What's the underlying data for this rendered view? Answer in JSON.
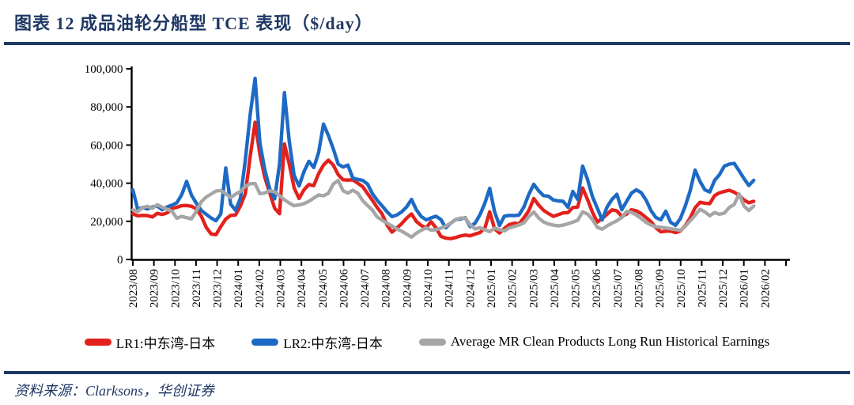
{
  "header": {
    "title": "图表 12  成品油轮分船型 TCE 表现（$/day）"
  },
  "source": {
    "text": "资料来源：Clarksons，华创证券"
  },
  "colors": {
    "navy": "#1F3864",
    "axis": "#000000",
    "lr1_red": "#E3211C",
    "lr2_blue": "#1D6AC5",
    "mr_gray": "#A6A6A6"
  },
  "chart_data": {
    "type": "line",
    "title": "成品油轮分船型 TCE 表现（$/day）",
    "ylabel": "",
    "xlabel": "",
    "ylim": [
      0,
      100000
    ],
    "grid": false,
    "legend_position": "bottom",
    "frequency": "weekly",
    "y_ticks": [
      0,
      20000,
      40000,
      60000,
      80000,
      100000
    ],
    "y_tick_labels": [
      "0",
      "20,000",
      "40,000",
      "60,000",
      "80,000",
      "100,000"
    ],
    "x_tick_labels": [
      "2023/08",
      "2023/09",
      "2023/10",
      "2023/11",
      "2023/12",
      "2024/01",
      "2024/02",
      "2024/03",
      "2024/04",
      "2024/05",
      "2024/06",
      "2024/07",
      "2024/08",
      "2024/09",
      "2024/10",
      "2024/11",
      "2024/12",
      "2025/01",
      "2025/02",
      "2025/03",
      "2025/04",
      "2025/05",
      "2025/06",
      "2025/07",
      "2025/08",
      "2025/09",
      "2025/10",
      "2025/11",
      "2025/12",
      "2026/01",
      "2026/02"
    ],
    "series": [
      {
        "name": "LR1:中东湾-日本",
        "color": "#E3211C",
        "values": [
          24000,
          22900,
          23100,
          23000,
          22300,
          24200,
          23600,
          24400,
          26700,
          27400,
          28200,
          28300,
          27900,
          26500,
          22700,
          16900,
          13400,
          13000,
          17300,
          21200,
          23100,
          23300,
          28000,
          34500,
          54000,
          72000,
          55000,
          43000,
          35000,
          26900,
          24000,
          60600,
          50000,
          37500,
          32000,
          36500,
          39300,
          38700,
          45000,
          49500,
          52100,
          49500,
          44500,
          41800,
          41600,
          41800,
          40000,
          38200,
          34600,
          31000,
          27200,
          23800,
          18000,
          14300,
          16500,
          18800,
          21600,
          23900,
          19900,
          17800,
          16600,
          19800,
          16700,
          12100,
          11200,
          10900,
          11500,
          12300,
          12800,
          12400,
          13300,
          14100,
          16500,
          25000,
          16000,
          13900,
          16300,
          18300,
          19000,
          18700,
          21900,
          25600,
          32000,
          28500,
          25800,
          24100,
          22600,
          23500,
          24400,
          24600,
          27200,
          27500,
          37500,
          31500,
          24800,
          19600,
          21500,
          23700,
          26000,
          25500,
          22600,
          23800,
          26100,
          25500,
          24000,
          21900,
          19800,
          16600,
          14500,
          14800,
          14900,
          14100,
          15000,
          17700,
          21800,
          27100,
          30000,
          29500,
          29300,
          33500,
          35000,
          35700,
          36300,
          35300,
          33600,
          31200,
          29700,
          30500
        ]
      },
      {
        "name": "LR2:中东湾-日本",
        "color": "#1D6AC5",
        "values": [
          36500,
          26200,
          27300,
          26500,
          27500,
          28000,
          26100,
          27500,
          28500,
          29700,
          34000,
          41000,
          33700,
          29400,
          25700,
          23700,
          21800,
          20300,
          24000,
          48000,
          29000,
          25800,
          32000,
          52000,
          76000,
          95000,
          61000,
          47000,
          37000,
          31800,
          50000,
          87500,
          62000,
          44000,
          38600,
          46000,
          51500,
          48200,
          56000,
          71000,
          65000,
          58000,
          50000,
          48500,
          49500,
          42600,
          42000,
          41500,
          39600,
          34500,
          31000,
          28100,
          25000,
          22500,
          23300,
          25000,
          27500,
          31500,
          26000,
          22500,
          20800,
          21800,
          22700,
          21000,
          16600,
          19000,
          20900,
          21200,
          21900,
          17200,
          19000,
          23500,
          29500,
          37300,
          25000,
          17800,
          22700,
          23100,
          23000,
          23300,
          27600,
          34200,
          39400,
          36000,
          33500,
          33200,
          31200,
          30700,
          30500,
          27400,
          35700,
          31500,
          49000,
          42000,
          33000,
          26900,
          20700,
          27500,
          31500,
          34200,
          26100,
          30500,
          34800,
          36500,
          35000,
          31000,
          25500,
          22000,
          20800,
          25300,
          19500,
          17900,
          21500,
          28000,
          36000,
          46900,
          41000,
          36500,
          35400,
          41500,
          44500,
          49000,
          50000,
          50400,
          46500,
          42500,
          38800,
          41500
        ]
      },
      {
        "name": "Average MR Clean Products Long Run Historical Earnings",
        "color": "#A6A6A6",
        "values": [
          26000,
          25200,
          27200,
          27900,
          26800,
          28700,
          27400,
          26300,
          25300,
          21600,
          22600,
          21900,
          21300,
          25400,
          30300,
          32700,
          34300,
          35900,
          36200,
          34400,
          32500,
          34200,
          35600,
          38400,
          39700,
          39800,
          34500,
          34900,
          36000,
          35500,
          33500,
          31300,
          29600,
          28200,
          28600,
          29300,
          30500,
          32200,
          33800,
          33400,
          34700,
          39600,
          41400,
          36000,
          34800,
          36300,
          34800,
          30900,
          28300,
          25900,
          22300,
          20600,
          19000,
          17500,
          16000,
          14800,
          13300,
          11700,
          13800,
          15300,
          16600,
          15400,
          15600,
          16400,
          17500,
          19000,
          20900,
          21700,
          21700,
          18200,
          16000,
          16700,
          15600,
          14600,
          16400,
          15600,
          15000,
          16600,
          17300,
          18100,
          19200,
          22500,
          24900,
          21800,
          19700,
          18600,
          18000,
          17600,
          18000,
          18700,
          19600,
          20600,
          25000,
          23800,
          21000,
          16900,
          15900,
          17600,
          19000,
          20300,
          22000,
          25200,
          24700,
          23300,
          21400,
          19400,
          18100,
          17100,
          16900,
          16500,
          16100,
          15700,
          15300,
          17400,
          20300,
          23100,
          26300,
          25000,
          22900,
          24600,
          23700,
          24300,
          27300,
          28800,
          34400,
          28000,
          25700,
          28000
        ]
      }
    ]
  }
}
